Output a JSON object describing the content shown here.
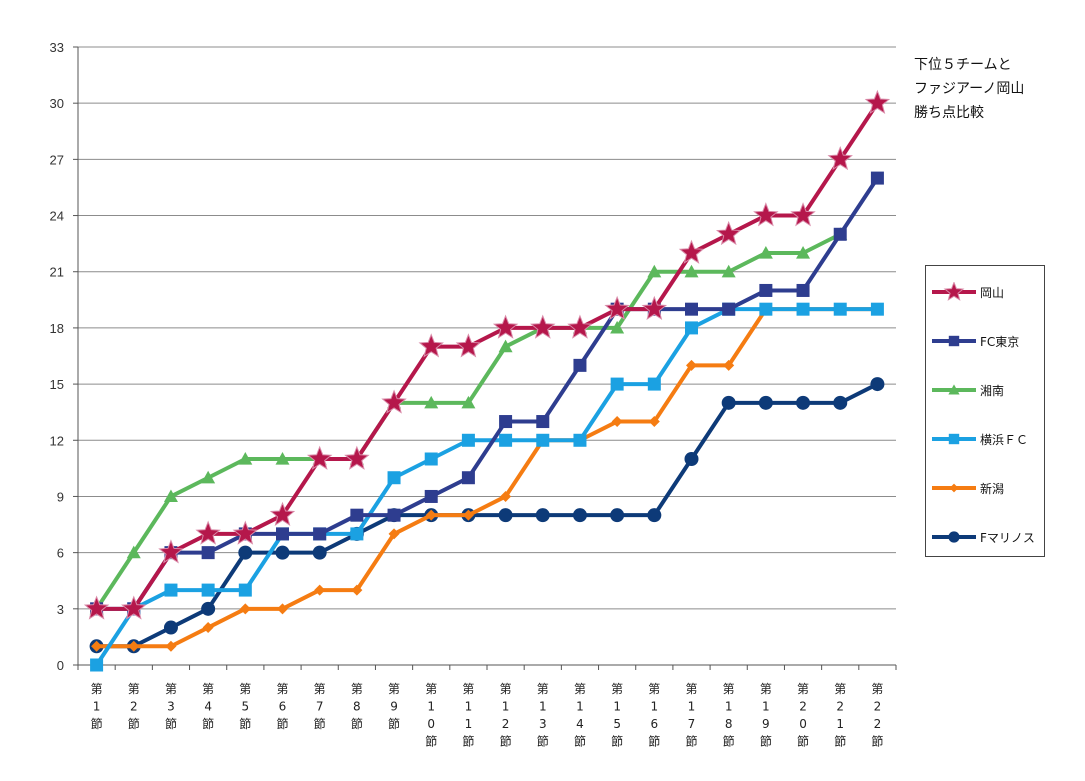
{
  "title_lines": [
    "下位５チームと",
    "ファジアーノ岡山",
    "勝ち点比較"
  ],
  "chart_data": {
    "type": "line",
    "title": "下位５チームと ファジアーノ岡山 勝ち点比較",
    "xlabel": "",
    "ylabel": "",
    "ylim": [
      0,
      33
    ],
    "yticks": [
      0,
      3,
      6,
      9,
      12,
      15,
      18,
      21,
      24,
      27,
      30,
      33
    ],
    "grid": true,
    "legend_position": "right",
    "categories": [
      "第1節",
      "第2節",
      "第3節",
      "第4節",
      "第5節",
      "第6節",
      "第7節",
      "第8節",
      "第9節",
      "第10節",
      "第11節",
      "第12節",
      "第13節",
      "第14節",
      "第15節",
      "第16節",
      "第17節",
      "第18節",
      "第19節",
      "第20節",
      "第21節",
      "第22節"
    ],
    "series": [
      {
        "name": "岡山",
        "color": "#b5174b",
        "marker": "star",
        "values": [
          3,
          3,
          6,
          7,
          7,
          8,
          11,
          11,
          14,
          17,
          17,
          18,
          18,
          18,
          19,
          19,
          22,
          23,
          24,
          24,
          27,
          30
        ]
      },
      {
        "name": "FC東京",
        "color": "#2e3d8f",
        "marker": "square",
        "values": [
          3,
          3,
          6,
          6,
          7,
          7,
          7,
          8,
          8,
          9,
          10,
          13,
          13,
          16,
          19,
          19,
          19,
          19,
          20,
          20,
          23,
          26
        ]
      },
      {
        "name": "湘南",
        "color": "#5cb85c",
        "marker": "triangle",
        "values": [
          3,
          6,
          9,
          10,
          11,
          11,
          11,
          11,
          14,
          14,
          14,
          17,
          18,
          18,
          18,
          21,
          21,
          21,
          22,
          22,
          23,
          null
        ]
      },
      {
        "name": "横浜ＦＣ",
        "color": "#1ba1e2",
        "marker": "square",
        "values": [
          0,
          3,
          4,
          4,
          4,
          7,
          7,
          7,
          10,
          11,
          12,
          12,
          12,
          12,
          15,
          15,
          18,
          19,
          19,
          19,
          19,
          19
        ]
      },
      {
        "name": "新潟",
        "color": "#f57c12",
        "marker": "diamond",
        "values": [
          1,
          1,
          1,
          2,
          3,
          3,
          4,
          4,
          7,
          8,
          8,
          9,
          12,
          12,
          13,
          13,
          16,
          16,
          19,
          19,
          19,
          19
        ]
      },
      {
        "name": "Fマリノス",
        "color": "#0d3a78",
        "marker": "circle",
        "values": [
          1,
          1,
          2,
          3,
          6,
          6,
          6,
          7,
          8,
          8,
          8,
          8,
          8,
          8,
          8,
          8,
          11,
          14,
          14,
          14,
          14,
          15
        ]
      }
    ]
  }
}
